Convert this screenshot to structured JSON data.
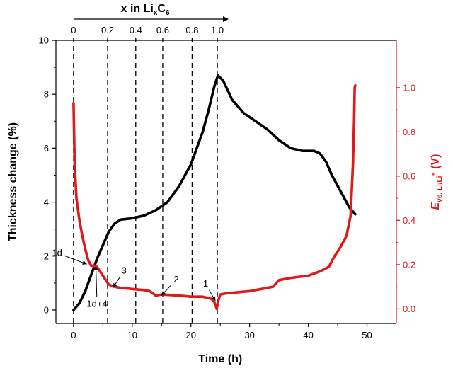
{
  "chart_data": {
    "type": "line",
    "colors": {
      "thickness": "#000000",
      "potential": "#e0191b",
      "axis": "#000000",
      "guide": "#000000"
    },
    "x_axis": {
      "label": "Time (h)",
      "range": [
        -3,
        55
      ],
      "ticks": [
        0,
        10,
        20,
        30,
        40,
        50
      ],
      "tick_labels": [
        "0",
        "10",
        "20",
        "30",
        "40",
        "50"
      ]
    },
    "y_left": {
      "label": "Thickness change (%)",
      "range": [
        -0.5,
        10
      ],
      "ticks": [
        0,
        2,
        4,
        6,
        8,
        10
      ],
      "tick_labels": [
        "0",
        "2",
        "4",
        "6",
        "8",
        "10"
      ]
    },
    "y_right": {
      "label_main": "E",
      "label_sub": "vs. Li/Li",
      "label_sup": "+",
      "label_unit": " (V)",
      "range": [
        -0.066,
        1.214
      ],
      "ticks": [
        0.0,
        0.2,
        0.4,
        0.6,
        0.8,
        1.0
      ],
      "tick_labels": [
        "0.0",
        "0.2",
        "0.4",
        "0.6",
        "0.8",
        "1.0"
      ]
    },
    "top_axis": {
      "label_main": "x in Li",
      "label_sub1": "x",
      "label_mid": "C",
      "label_sub2": "6",
      "ticks_time": [
        0,
        5.8,
        10.6,
        15.2,
        20.2,
        24.5
      ],
      "tick_labels": [
        "0",
        "0.2",
        "0.4",
        "0.6",
        "0.8",
        "1.0"
      ]
    },
    "guide_lines_time": [
      0,
      5.8,
      10.6,
      15.2,
      20.2,
      24.5
    ],
    "annotations": [
      {
        "text": "1d",
        "at": [
          2.5,
          0.2
        ],
        "label_at": [
          -2.8,
          0.24
        ],
        "axis": "right"
      },
      {
        "text": "1d+4",
        "at": [
          3.8,
          0.2
        ],
        "label_at": [
          4.0,
          0.01
        ],
        "axis": "right"
      },
      {
        "text": "3",
        "at": [
          6.6,
          0.09
        ],
        "label_at": [
          8.6,
          0.16
        ],
        "axis": "right"
      },
      {
        "text": "2",
        "at": [
          14.8,
          0.055
        ],
        "label_at": [
          17.5,
          0.12
        ],
        "axis": "right"
      },
      {
        "text": "1",
        "at": [
          24.3,
          0.03
        ],
        "label_at": [
          22.5,
          0.1
        ],
        "axis": "right"
      }
    ],
    "series": [
      {
        "axis": "left",
        "points": [
          [
            0,
            0
          ],
          [
            1,
            0.25
          ],
          [
            2,
            0.7
          ],
          [
            3,
            1.3
          ],
          [
            4,
            1.9
          ],
          [
            5,
            2.4
          ],
          [
            6,
            2.9
          ],
          [
            7,
            3.2
          ],
          [
            8,
            3.35
          ],
          [
            10,
            3.4
          ],
          [
            12,
            3.5
          ],
          [
            14,
            3.7
          ],
          [
            16,
            4.0
          ],
          [
            18,
            4.6
          ],
          [
            20,
            5.4
          ],
          [
            22,
            6.6
          ],
          [
            23,
            7.4
          ],
          [
            24,
            8.3
          ],
          [
            24.6,
            8.7
          ],
          [
            25.5,
            8.5
          ],
          [
            27,
            7.8
          ],
          [
            29,
            7.3
          ],
          [
            31,
            7.0
          ],
          [
            33,
            6.7
          ],
          [
            35,
            6.3
          ],
          [
            37,
            6.0
          ],
          [
            39,
            5.9
          ],
          [
            41,
            5.9
          ],
          [
            42,
            5.8
          ],
          [
            43,
            5.5
          ],
          [
            44,
            5.0
          ],
          [
            45,
            4.6
          ],
          [
            46,
            4.2
          ],
          [
            47,
            3.8
          ],
          [
            48,
            3.55
          ]
        ]
      },
      {
        "axis": "right",
        "points": [
          [
            0,
            0.93
          ],
          [
            0.2,
            0.65
          ],
          [
            0.5,
            0.5
          ],
          [
            1,
            0.4
          ],
          [
            1.5,
            0.33
          ],
          [
            2,
            0.27
          ],
          [
            2.5,
            0.22
          ],
          [
            3,
            0.195
          ],
          [
            3.5,
            0.195
          ],
          [
            4,
            0.19
          ],
          [
            4.5,
            0.17
          ],
          [
            5,
            0.15
          ],
          [
            5.5,
            0.13
          ],
          [
            6,
            0.11
          ],
          [
            7,
            0.1
          ],
          [
            8,
            0.095
          ],
          [
            10,
            0.09
          ],
          [
            12,
            0.085
          ],
          [
            13,
            0.08
          ],
          [
            14,
            0.06
          ],
          [
            15,
            0.065
          ],
          [
            18,
            0.06
          ],
          [
            20,
            0.055
          ],
          [
            22,
            0.055
          ],
          [
            23.5,
            0.045
          ],
          [
            24,
            0.03
          ],
          [
            24.4,
            0.0
          ],
          [
            24.7,
            0.04
          ],
          [
            25,
            0.065
          ],
          [
            26,
            0.07
          ],
          [
            28,
            0.075
          ],
          [
            30,
            0.08
          ],
          [
            32,
            0.09
          ],
          [
            34,
            0.1
          ],
          [
            35,
            0.13
          ],
          [
            37,
            0.14
          ],
          [
            40,
            0.15
          ],
          [
            42,
            0.17
          ],
          [
            43.5,
            0.19
          ],
          [
            44.5,
            0.24
          ],
          [
            45.5,
            0.28
          ],
          [
            46.5,
            0.33
          ],
          [
            47.2,
            0.42
          ],
          [
            47.6,
            0.65
          ],
          [
            47.8,
            0.85
          ],
          [
            47.9,
            1.0
          ],
          [
            48,
            1.01
          ]
        ]
      }
    ]
  }
}
